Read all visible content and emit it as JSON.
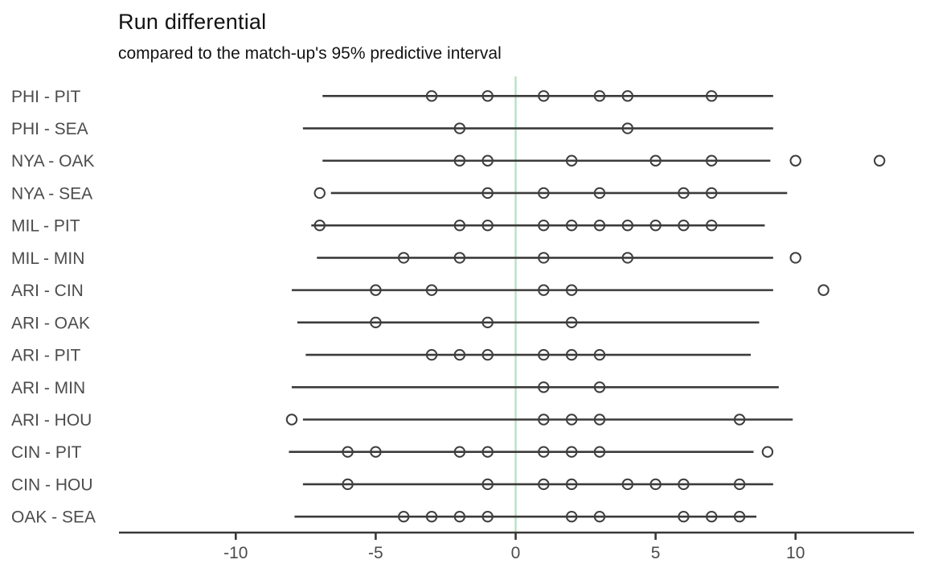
{
  "title": "Run differential",
  "subtitle": "compared to the match-up's 95% predictive interval",
  "colors": {
    "interval_line": "#3b3b3b",
    "point_stroke": "#3e3e3e",
    "zero_line": "#b6e0c2",
    "axis_line": "#383838",
    "label_text": "#4c4c4c",
    "title_text": "#131313",
    "background": "#ffffff"
  },
  "chart_data": {
    "type": "scatter",
    "subtype": "interval-dot-plot",
    "title": "Run differential",
    "subtitle": "compared to the match-up's 95% predictive interval",
    "xlabel": "",
    "ylabel": "",
    "xlim": [
      -14.2,
      14.2
    ],
    "x_ticks": [
      "-10",
      "-5",
      "0",
      "5",
      "10"
    ],
    "x_tick_values": [
      -10,
      -5,
      0,
      5,
      10
    ],
    "zero_reference_x": 0,
    "grid": "off",
    "legend": "none",
    "rows": [
      {
        "label": "PHI - PIT",
        "interval": [
          -6.9,
          9.2
        ],
        "points": [
          -3,
          -1,
          1,
          3,
          4,
          7
        ]
      },
      {
        "label": "PHI - SEA",
        "interval": [
          -7.6,
          9.2
        ],
        "points": [
          -2,
          4
        ]
      },
      {
        "label": "NYA - OAK",
        "interval": [
          -6.9,
          9.1
        ],
        "points": [
          -2,
          -1,
          2,
          5,
          7,
          10,
          13
        ]
      },
      {
        "label": "NYA - SEA",
        "interval": [
          -6.6,
          9.7
        ],
        "points": [
          -7,
          -1,
          1,
          3,
          6,
          7
        ]
      },
      {
        "label": "MIL - PIT",
        "interval": [
          -7.3,
          8.9
        ],
        "points": [
          -7,
          -2,
          -1,
          1,
          2,
          3,
          4,
          5,
          6,
          7
        ]
      },
      {
        "label": "MIL - MIN",
        "interval": [
          -7.1,
          9.2
        ],
        "points": [
          -4,
          -2,
          1,
          4,
          10
        ]
      },
      {
        "label": "ARI - CIN",
        "interval": [
          -8.0,
          9.2
        ],
        "points": [
          -5,
          -3,
          1,
          2,
          11
        ]
      },
      {
        "label": "ARI - OAK",
        "interval": [
          -7.8,
          8.7
        ],
        "points": [
          -5,
          -1,
          2
        ]
      },
      {
        "label": "ARI - PIT",
        "interval": [
          -7.5,
          8.4
        ],
        "points": [
          -3,
          -2,
          -1,
          1,
          2,
          3
        ]
      },
      {
        "label": "ARI - MIN",
        "interval": [
          -8.0,
          9.4
        ],
        "points": [
          1,
          3
        ]
      },
      {
        "label": "ARI - HOU",
        "interval": [
          -7.6,
          9.9
        ],
        "points": [
          -8,
          1,
          2,
          3,
          8
        ]
      },
      {
        "label": "CIN - PIT",
        "interval": [
          -8.1,
          8.5
        ],
        "points": [
          -6,
          -5,
          -2,
          -1,
          1,
          2,
          3,
          9
        ]
      },
      {
        "label": "CIN - HOU",
        "interval": [
          -7.6,
          9.2
        ],
        "points": [
          -6,
          -1,
          1,
          2,
          4,
          5,
          6,
          8
        ]
      },
      {
        "label": "OAK - SEA",
        "interval": [
          -7.9,
          8.6
        ],
        "points": [
          -4,
          -3,
          -2,
          -1,
          2,
          3,
          6,
          7,
          8
        ]
      }
    ]
  }
}
